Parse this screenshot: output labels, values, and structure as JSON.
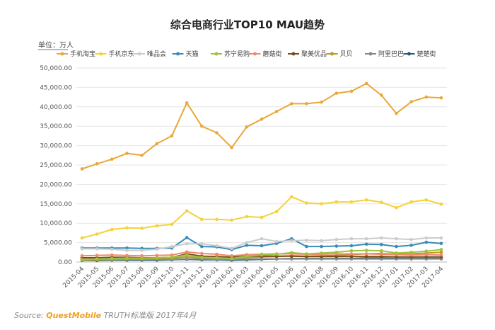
{
  "chart_data": {
    "type": "line",
    "title": "综合电商行业TOP10 MAU趋势",
    "unit_label": "单位：万人",
    "ylim": [
      0,
      50000
    ],
    "yticks": [
      "0.00",
      "5,000.00",
      "10,000.00",
      "15,000.00",
      "20,000.00",
      "25,000.00",
      "30,000.00",
      "35,000.00",
      "40,000.00",
      "45,000.00",
      "50,000.00"
    ],
    "ytick_values": [
      0,
      5000,
      10000,
      15000,
      20000,
      25000,
      30000,
      35000,
      40000,
      45000,
      50000
    ],
    "grid": true,
    "legend_position": "top",
    "x": [
      "2015-04",
      "2015-05",
      "2015-06",
      "2015-07",
      "2015-08",
      "2015-09",
      "2015-10",
      "2015-11",
      "2015-12",
      "2016-01",
      "2016-02",
      "2016-03",
      "2016-04",
      "2016-05",
      "2016-06",
      "2016-07",
      "2016-08",
      "2016-09",
      "2016-10",
      "2016-11",
      "2016-12",
      "2017-01",
      "2017-02",
      "2017-03",
      "2017-04"
    ],
    "series": [
      {
        "name": "手机淘宝",
        "color": "#e8a83a",
        "values": [
          24000,
          25300,
          26500,
          28000,
          27500,
          30500,
          32500,
          41000,
          35000,
          33300,
          29500,
          34800,
          36800,
          38800,
          40800,
          40800,
          41200,
          43500,
          44000,
          46000,
          43000,
          38300,
          41300,
          42500,
          42300
        ]
      },
      {
        "name": "手机京东",
        "color": "#f4d23a",
        "values": [
          6200,
          7200,
          8400,
          8800,
          8700,
          9300,
          9700,
          13200,
          11000,
          11000,
          10800,
          11700,
          11500,
          13000,
          16800,
          15200,
          15000,
          15500,
          15500,
          16000,
          15400,
          14000,
          15500,
          16000,
          14900
        ]
      },
      {
        "name": "唯品会",
        "color": "#cccccc",
        "values": [
          3400,
          3400,
          3300,
          3000,
          3000,
          3300,
          4000,
          4700,
          4700,
          4200,
          3500,
          5000,
          6000,
          5300,
          5500,
          5600,
          5500,
          5800,
          6000,
          6000,
          6200,
          6000,
          5800,
          6200,
          6200
        ]
      },
      {
        "name": "天猫",
        "color": "#3a8bb6",
        "values": [
          3600,
          3600,
          3600,
          3600,
          3500,
          3500,
          3600,
          6300,
          4000,
          3900,
          3200,
          4300,
          4200,
          4800,
          6000,
          4000,
          4000,
          4100,
          4200,
          4600,
          4500,
          4000,
          4300,
          5100,
          4800
        ]
      },
      {
        "name": "苏宁易购",
        "color": "#9cc43a",
        "values": [
          600,
          800,
          900,
          1000,
          1000,
          1100,
          1200,
          1800,
          1200,
          1100,
          900,
          1500,
          1800,
          2000,
          2400,
          2100,
          2300,
          2500,
          2900,
          3000,
          2900,
          2300,
          2500,
          2800,
          3200
        ]
      },
      {
        "name": "蘑菇街",
        "color": "#f08a6c",
        "values": [
          1600,
          1700,
          1800,
          1700,
          1600,
          1700,
          1800,
          2600,
          2200,
          2000,
          1600,
          1900,
          2000,
          2100,
          2100,
          2000,
          2000,
          2100,
          2100,
          2100,
          2000,
          1900,
          1800,
          1900,
          1800
        ]
      },
      {
        "name": "聚美优品",
        "color": "#7a4a18",
        "values": [
          1100,
          1100,
          1200,
          1200,
          1100,
          1100,
          1200,
          2100,
          1500,
          1400,
          1200,
          1600,
          1500,
          1500,
          1500,
          1400,
          1400,
          1400,
          1400,
          1400,
          1400,
          1300,
          1300,
          1300,
          1300
        ]
      },
      {
        "name": "贝贝",
        "color": "#b89a28",
        "values": [
          500,
          600,
          700,
          800,
          800,
          900,
          1000,
          1300,
          1100,
          1100,
          1000,
          1200,
          1300,
          1400,
          1600,
          1500,
          1600,
          1700,
          1900,
          2100,
          2200,
          2000,
          2100,
          2300,
          2500
        ]
      },
      {
        "name": "阿里巴巴",
        "color": "#888888",
        "values": [
          700,
          700,
          700,
          700,
          700,
          700,
          700,
          800,
          800,
          700,
          700,
          800,
          800,
          800,
          800,
          800,
          800,
          800,
          800,
          800,
          800,
          800,
          800,
          800,
          800
        ]
      },
      {
        "name": "楚楚街",
        "color": "#1f5a6e",
        "values": [
          400,
          400,
          500,
          500,
          500,
          500,
          600,
          700,
          600,
          600,
          500,
          600,
          700,
          800,
          900,
          900,
          900,
          900,
          900,
          1000,
          1000,
          900,
          900,
          900,
          900
        ]
      }
    ]
  },
  "source": {
    "prefix": "Source:",
    "brand": "QuestMobile",
    "suffix": "TRUTH标准版 2017年4月"
  }
}
